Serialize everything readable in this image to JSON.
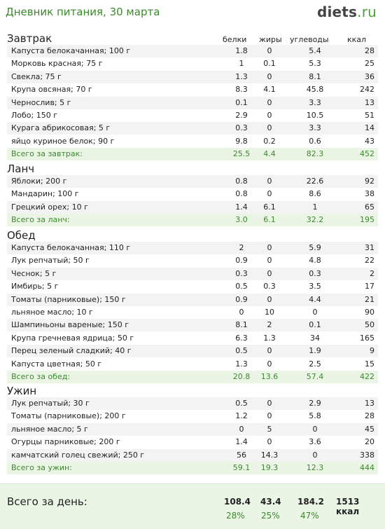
{
  "page": {
    "title": "Дневник питания, 30 марта",
    "logo_main": "diets",
    "logo_tld": ".ru"
  },
  "columns": {
    "protein": "белки",
    "fat": "жиры",
    "carbs": "углеводы",
    "kcal": "ккал"
  },
  "meals": [
    {
      "title": "Завтрак",
      "items": [
        {
          "name": "Капуста белокачанная; 100 г",
          "protein": "1.8",
          "fat": "0",
          "carbs": "5.4",
          "kcal": "28"
        },
        {
          "name": "Морковь красная; 75 г",
          "protein": "1",
          "fat": "0.1",
          "carbs": "5.3",
          "kcal": "25"
        },
        {
          "name": "Свекла; 75 г",
          "protein": "1.3",
          "fat": "0",
          "carbs": "8.1",
          "kcal": "36"
        },
        {
          "name": "Крупа овсяная; 70 г",
          "protein": "8.3",
          "fat": "4.1",
          "carbs": "45.8",
          "kcal": "242"
        },
        {
          "name": "Чернослив; 5 г",
          "protein": "0.1",
          "fat": "0",
          "carbs": "3.3",
          "kcal": "13"
        },
        {
          "name": "Лобо; 150 г",
          "protein": "2.9",
          "fat": "0",
          "carbs": "10.5",
          "kcal": "51"
        },
        {
          "name": "Курага абрикосовая; 5 г",
          "protein": "0.3",
          "fat": "0",
          "carbs": "3.3",
          "kcal": "14"
        },
        {
          "name": "яйцо куриное белок; 90 г",
          "protein": "9.8",
          "fat": "0.2",
          "carbs": "0.6",
          "kcal": "43"
        }
      ],
      "total": {
        "name": "Всего за завтрак:",
        "protein": "25.5",
        "fat": "4.4",
        "carbs": "82.3",
        "kcal": "452"
      }
    },
    {
      "title": "Ланч",
      "items": [
        {
          "name": "Яблоки; 200 г",
          "protein": "0.8",
          "fat": "0",
          "carbs": "22.6",
          "kcal": "92"
        },
        {
          "name": "Мандарин; 100 г",
          "protein": "0.8",
          "fat": "0",
          "carbs": "8.6",
          "kcal": "38"
        },
        {
          "name": "Грецкий орех; 10 г",
          "protein": "1.4",
          "fat": "6.1",
          "carbs": "1",
          "kcal": "65"
        }
      ],
      "total": {
        "name": "Всего за ланч:",
        "protein": "3.0",
        "fat": "6.1",
        "carbs": "32.2",
        "kcal": "195"
      }
    },
    {
      "title": "Обед",
      "items": [
        {
          "name": "Капуста белокачанная; 110 г",
          "protein": "2",
          "fat": "0",
          "carbs": "5.9",
          "kcal": "31"
        },
        {
          "name": "Лук репчатый; 50 г",
          "protein": "0.9",
          "fat": "0",
          "carbs": "4.8",
          "kcal": "22"
        },
        {
          "name": "Чеснок; 5 г",
          "protein": "0.3",
          "fat": "0",
          "carbs": "0.3",
          "kcal": "2"
        },
        {
          "name": "Имбирь; 5 г",
          "protein": "0.5",
          "fat": "0.3",
          "carbs": "3.5",
          "kcal": "17"
        },
        {
          "name": "Томаты (парниковые); 150 г",
          "protein": "0.9",
          "fat": "0",
          "carbs": "4.4",
          "kcal": "21"
        },
        {
          "name": "льняное масло; 10 г",
          "protein": "0",
          "fat": "10",
          "carbs": "0",
          "kcal": "90"
        },
        {
          "name": "Шампиньоны вареные; 150 г",
          "protein": "8.1",
          "fat": "2",
          "carbs": "0.1",
          "kcal": "50"
        },
        {
          "name": "Крупа гречневая ядрица; 50 г",
          "protein": "6.3",
          "fat": "1.3",
          "carbs": "34",
          "kcal": "165"
        },
        {
          "name": "Перец зеленый сладкий; 40 г",
          "protein": "0.5",
          "fat": "0",
          "carbs": "1.9",
          "kcal": "9"
        },
        {
          "name": "Капуста цветная; 50 г",
          "protein": "1.3",
          "fat": "0",
          "carbs": "2.5",
          "kcal": "15"
        }
      ],
      "total": {
        "name": "Всего за обед:",
        "protein": "20.8",
        "fat": "13.6",
        "carbs": "57.4",
        "kcal": "422"
      }
    },
    {
      "title": "Ужин",
      "items": [
        {
          "name": "Лук репчатый; 30 г",
          "protein": "0.5",
          "fat": "0",
          "carbs": "2.9",
          "kcal": "13"
        },
        {
          "name": "Томаты (парниковые); 200 г",
          "protein": "1.2",
          "fat": "0",
          "carbs": "5.8",
          "kcal": "28"
        },
        {
          "name": "льняное масло; 5 г",
          "protein": "0",
          "fat": "5",
          "carbs": "0",
          "kcal": "45"
        },
        {
          "name": "Огурцы парниковые; 200 г",
          "protein": "1.4",
          "fat": "0",
          "carbs": "3.6",
          "kcal": "20"
        },
        {
          "name": "камчатский голец свежий; 250 г",
          "protein": "56",
          "fat": "14.3",
          "carbs": "0",
          "kcal": "338"
        }
      ],
      "total": {
        "name": "Всего за ужин:",
        "protein": "59.1",
        "fat": "19.3",
        "carbs": "12.3",
        "kcal": "444"
      }
    }
  ],
  "day_total": {
    "label": "Всего за день:",
    "protein": "108.4",
    "fat": "43.4",
    "carbs": "184.2",
    "kcal": "1513 ккал",
    "protein_pct": "28%",
    "fat_pct": "25%",
    "carbs_pct": "47%"
  }
}
